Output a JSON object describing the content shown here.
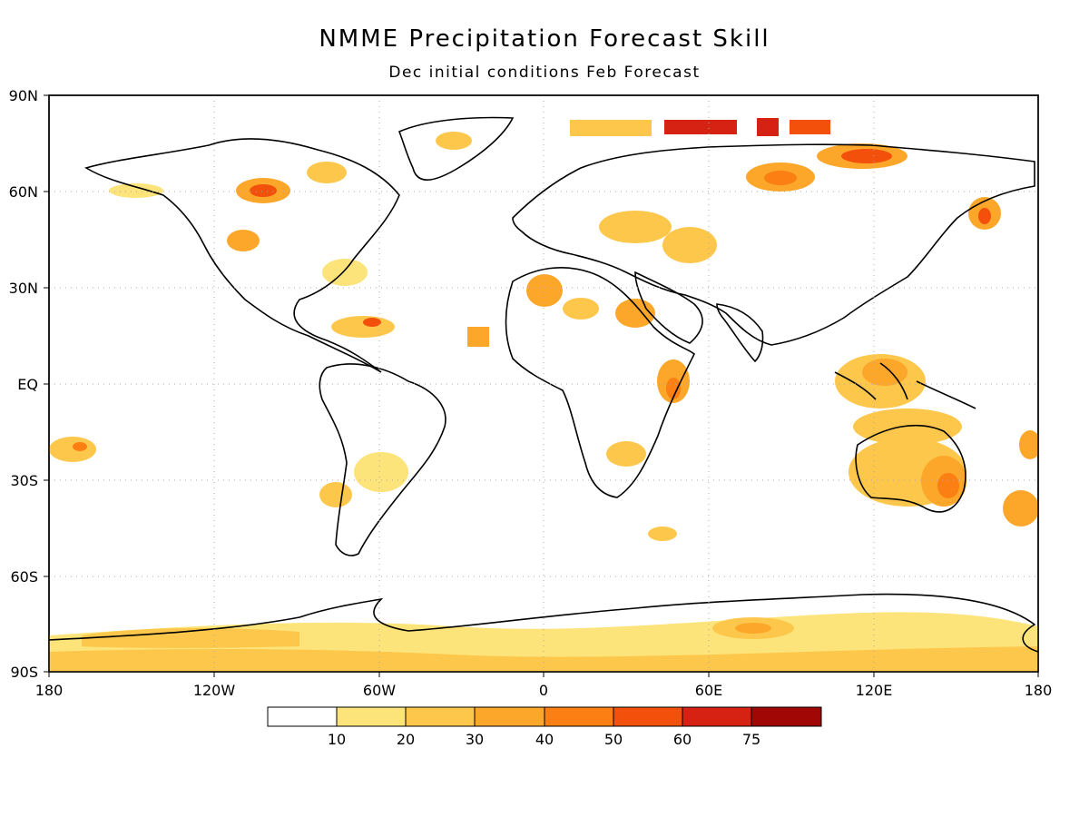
{
  "title": "NMME Precipitation Forecast Skill",
  "subtitle": "Dec initial conditions  Feb Forecast",
  "lat_labels": [
    "90N",
    "60N",
    "30N",
    "EQ",
    "30S",
    "60S",
    "90S"
  ],
  "lon_labels": [
    "180",
    "120W",
    "60W",
    "0",
    "60E",
    "120E",
    "180"
  ],
  "legend": {
    "thresholds": [
      "10",
      "20",
      "30",
      "40",
      "50",
      "60",
      "75"
    ],
    "colors": [
      "#ffffff",
      "#fde47a",
      "#fcc74b",
      "#fca62a",
      "#fb7f12",
      "#f2500b",
      "#d62212",
      "#a00705"
    ]
  },
  "skill_colors": {
    "c10": "#fde47a",
    "c20": "#fcc74b",
    "c30": "#fca62a",
    "c40": "#fb7f12",
    "c50": "#f2500b",
    "c60": "#d62212"
  }
}
